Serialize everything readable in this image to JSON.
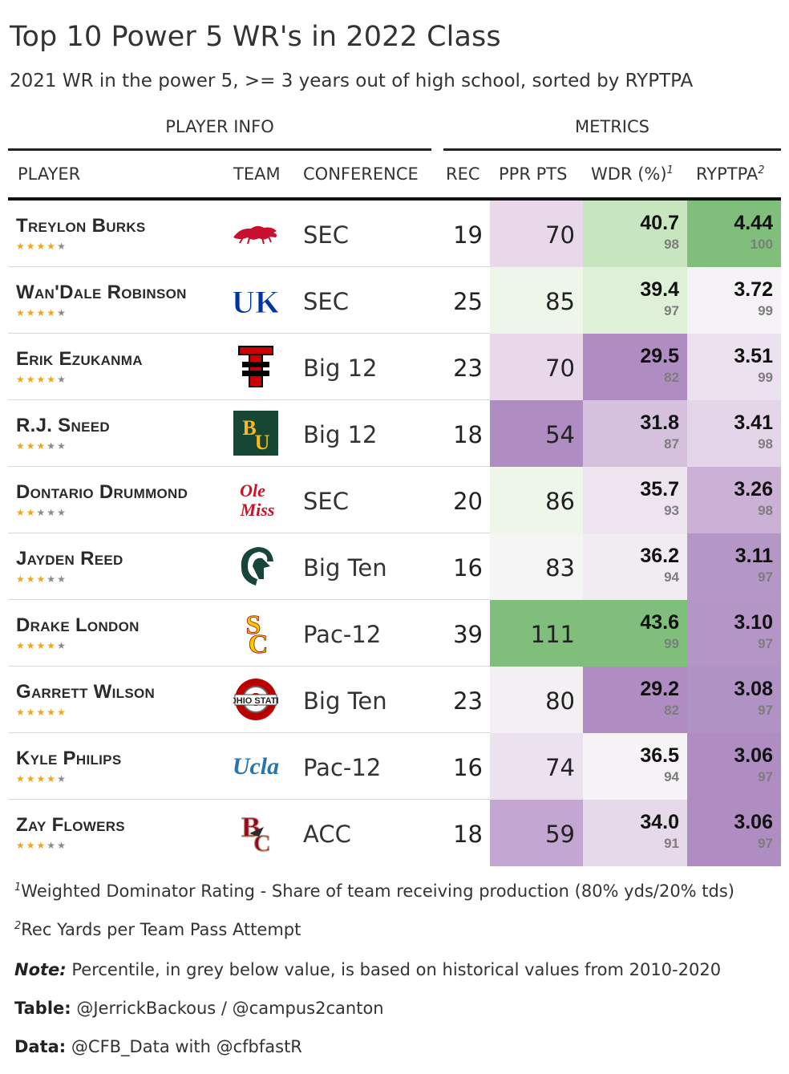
{
  "title": "Top 10 Power 5 WR's in 2022 Class",
  "subtitle": "2021 WR in the power 5, >= 3 years out of high school, sorted by RYPTPA",
  "spanners": {
    "player_info": "PLAYER INFO",
    "metrics": "METRICS"
  },
  "columns": {
    "player": "PLAYER",
    "team": "TEAM",
    "conference": "CONFERENCE",
    "rec": "REC",
    "ppr": "PPR PTS",
    "wdr": "WDR (%)",
    "wdr_sup": "1",
    "ryptpa": "RYPTPA",
    "ryptpa_sup": "2"
  },
  "colors": {
    "green_dark": "#7fbf7b",
    "green_mid": "#c7e6c0",
    "green_light": "#eef6ea",
    "neutral": "#f5f5f5",
    "purple_light": "#e8d8ea",
    "purple_mid": "#cbb1d6",
    "purple_dark": "#af8dc3"
  },
  "chart_data": {
    "type": "table",
    "title": "Top 10 Power 5 WR's in 2022 Class",
    "rows": [
      {
        "player": "Treylon Burks",
        "stars": 4,
        "team_icon": "arkansas-razorback-logo",
        "conference": "SEC",
        "rec": "19",
        "ppr": "70",
        "wdr": "40.7",
        "wdr_pct": "98",
        "ryptpa": "4.44",
        "ryptpa_pct": "100",
        "ppr_color": "#e8d8ea",
        "wdr_color": "#c7e6c0",
        "ryptpa_color": "#7fbf7b"
      },
      {
        "player": "Wan'Dale Robinson",
        "stars": 4,
        "team_icon": "kentucky-uk-logo",
        "conference": "SEC",
        "rec": "25",
        "ppr": "85",
        "wdr": "39.4",
        "wdr_pct": "97",
        "ryptpa": "3.72",
        "ryptpa_pct": "99",
        "ppr_color": "#eef6ea",
        "wdr_color": "#dff0d9",
        "ryptpa_color": "#f5f3f5"
      },
      {
        "player": "Erik Ezukanma",
        "stars": 4,
        "team_icon": "texas-tech-logo",
        "conference": "Big 12",
        "rec": "23",
        "ppr": "70",
        "wdr": "29.5",
        "wdr_pct": "82",
        "ryptpa": "3.51",
        "ryptpa_pct": "99",
        "ppr_color": "#e8d8ea",
        "wdr_color": "#af8dc3",
        "ryptpa_color": "#ece1ee"
      },
      {
        "player": "R.J. Sneed",
        "stars": 3,
        "team_icon": "baylor-bu-logo",
        "conference": "Big 12",
        "rec": "18",
        "ppr": "54",
        "wdr": "31.8",
        "wdr_pct": "87",
        "ryptpa": "3.41",
        "ryptpa_pct": "98",
        "ppr_color": "#af8dc3",
        "wdr_color": "#d5c1de",
        "ryptpa_color": "#e5d5e9"
      },
      {
        "player": "Dontario Drummond",
        "stars": 2,
        "team_icon": "ole-miss-logo",
        "conference": "SEC",
        "rec": "20",
        "ppr": "86",
        "wdr": "35.7",
        "wdr_pct": "93",
        "ryptpa": "3.26",
        "ryptpa_pct": "98",
        "ppr_color": "#eef6ea",
        "wdr_color": "#ede4ef",
        "ryptpa_color": "#cbb1d6"
      },
      {
        "player": "Jayden Reed",
        "stars": 3,
        "team_icon": "michigan-state-spartan-logo",
        "conference": "Big Ten",
        "rec": "16",
        "ppr": "83",
        "wdr": "36.2",
        "wdr_pct": "94",
        "ryptpa": "3.11",
        "ryptpa_pct": "97",
        "ppr_color": "#f5f5f5",
        "wdr_color": "#f1ebf2",
        "ryptpa_color": "#b597c7"
      },
      {
        "player": "Drake London",
        "stars": 4,
        "team_icon": "usc-sc-logo",
        "conference": "Pac-12",
        "rec": "39",
        "ppr": "111",
        "wdr": "43.6",
        "wdr_pct": "99",
        "ryptpa": "3.10",
        "ryptpa_pct": "97",
        "ppr_color": "#7fbf7b",
        "wdr_color": "#7fbf7b",
        "ryptpa_color": "#b495c6"
      },
      {
        "player": "Garrett Wilson",
        "stars": 5,
        "team_icon": "ohio-state-logo",
        "conference": "Big Ten",
        "rec": "23",
        "ppr": "80",
        "wdr": "29.2",
        "wdr_pct": "82",
        "ryptpa": "3.08",
        "ryptpa_pct": "97",
        "ppr_color": "#f3f0f3",
        "wdr_color": "#af8dc3",
        "ryptpa_color": "#b192c5"
      },
      {
        "player": "Kyle Philips",
        "stars": 4,
        "team_icon": "ucla-logo",
        "conference": "Pac-12",
        "rec": "16",
        "ppr": "74",
        "wdr": "36.5",
        "wdr_pct": "94",
        "ryptpa": "3.06",
        "ryptpa_pct": "97",
        "ppr_color": "#ece1ee",
        "wdr_color": "#f5f3f5",
        "ryptpa_color": "#af8dc3"
      },
      {
        "player": "Zay Flowers",
        "stars": 3,
        "team_icon": "boston-college-logo",
        "conference": "ACC",
        "rec": "18",
        "ppr": "59",
        "wdr": "34.0",
        "wdr_pct": "91",
        "ryptpa": "3.06",
        "ryptpa_pct": "97",
        "ppr_color": "#c3a6d1",
        "wdr_color": "#e6d9ea",
        "ryptpa_color": "#af8dc3"
      }
    ]
  },
  "footnotes": {
    "fn1_mark": "1",
    "fn1_text": "Weighted Dominator Rating - Share of team receiving production (80% yds/20% tds)",
    "fn2_mark": "2",
    "fn2_text": "Rec Yards per Team Pass Attempt",
    "note_label": "Note:",
    "note_text": "Percentile, in grey below value, is based on historical values from 2010-2020",
    "table_label": "Table:",
    "table_text": "@JerrickBackous / @campus2canton",
    "data_label": "Data:",
    "data_text": "@CFB_Data with @cfbfastR"
  }
}
